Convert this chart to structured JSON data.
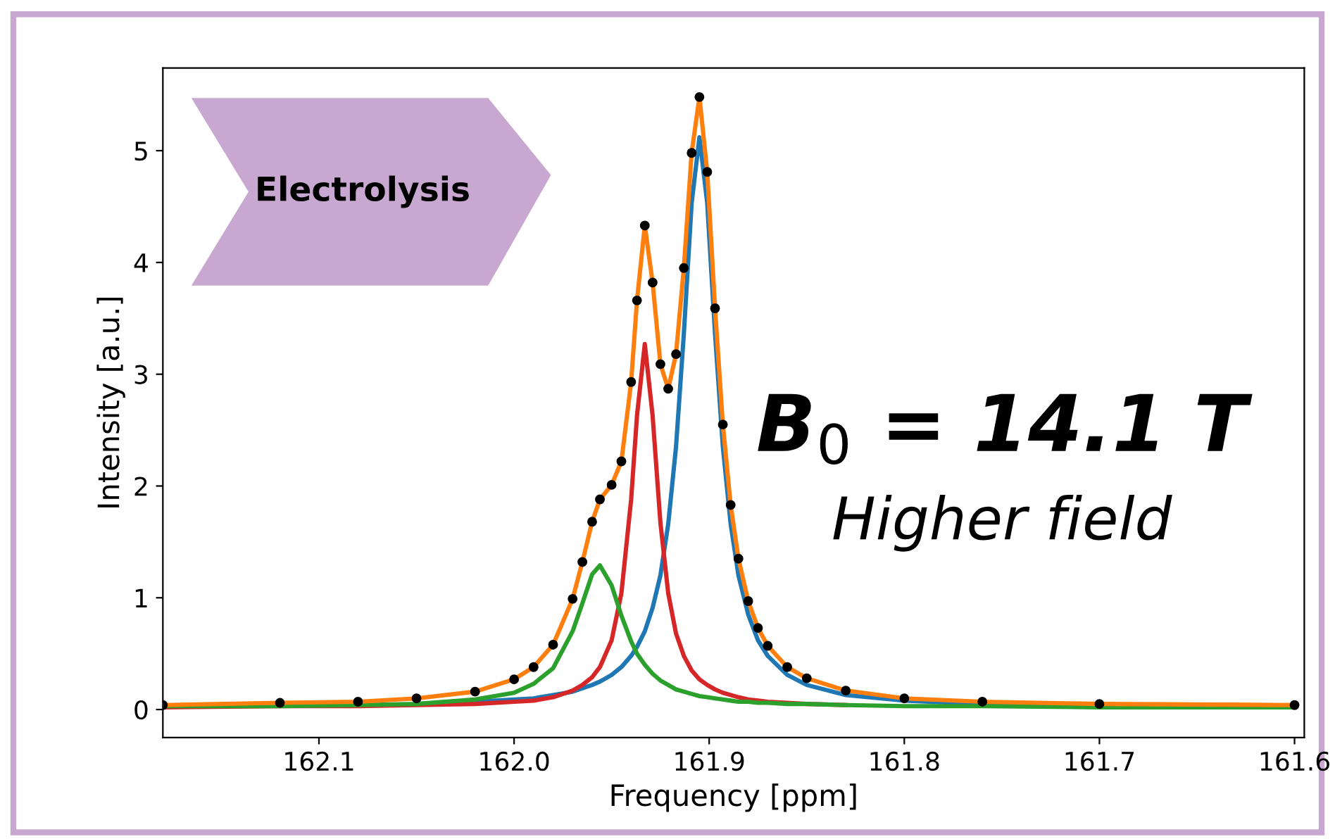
{
  "chart_data": {
    "type": "line",
    "xlabel": "Frequency [ppm]",
    "ylabel": "Intensity [a.u.]",
    "annotations": [
      "Electrolysis",
      "B$_{0}$ = 14.1 T",
      "Higher field"
    ],
    "x": [
      162.18,
      162.12,
      162.08,
      162.05,
      162.02,
      162.0,
      161.99,
      161.98,
      161.97,
      161.965,
      161.96,
      161.956,
      161.95,
      161.945,
      161.94,
      161.937,
      161.933,
      161.929,
      161.925,
      161.921,
      161.917,
      161.913,
      161.909,
      161.905,
      161.901,
      161.897,
      161.893,
      161.889,
      161.885,
      161.88,
      161.875,
      161.87,
      161.86,
      161.85,
      161.83,
      161.8,
      161.76,
      161.7,
      161.6
    ],
    "series": [
      {
        "type": "scatter",
        "color": "#000000",
        "values": [
          0.04,
          0.06,
          0.07,
          0.1,
          0.16,
          0.27,
          0.38,
          0.58,
          0.99,
          1.32,
          1.68,
          1.88,
          2.01,
          2.22,
          2.93,
          3.66,
          4.33,
          3.82,
          3.09,
          2.87,
          3.18,
          3.95,
          4.98,
          5.48,
          4.81,
          3.59,
          2.55,
          1.83,
          1.35,
          0.97,
          0.73,
          0.57,
          0.38,
          0.28,
          0.17,
          0.1,
          0.07,
          0.05,
          0.04
        ]
      },
      {
        "color": "#1f77b4",
        "values": [
          null,
          null,
          null,
          0.05,
          0.07,
          0.09,
          0.1,
          0.13,
          0.16,
          0.19,
          0.22,
          0.25,
          0.31,
          0.38,
          0.48,
          0.56,
          0.7,
          0.91,
          1.2,
          1.66,
          2.35,
          3.36,
          4.53,
          5.12,
          4.53,
          3.36,
          2.35,
          1.66,
          1.2,
          0.85,
          0.62,
          0.48,
          0.31,
          0.22,
          0.13,
          0.08,
          0.05,
          0.03,
          0.03
        ]
      },
      {
        "color": "#d62728",
        "values": [
          0.02,
          0.03,
          0.03,
          0.04,
          0.05,
          0.07,
          0.08,
          0.11,
          0.17,
          0.22,
          0.29,
          0.38,
          0.62,
          1.04,
          1.88,
          2.63,
          3.27,
          2.63,
          1.67,
          1.04,
          0.68,
          0.48,
          0.35,
          0.27,
          0.22,
          0.18,
          0.15,
          0.13,
          0.11,
          0.09,
          0.08,
          0.07,
          0.06,
          0.05,
          0.04,
          null,
          null,
          null,
          null
        ]
      },
      {
        "color": "#2ca02c",
        "values": [
          0.03,
          0.03,
          0.04,
          0.05,
          0.09,
          0.15,
          0.23,
          0.37,
          0.7,
          0.95,
          1.21,
          1.29,
          1.11,
          0.84,
          0.61,
          0.5,
          0.4,
          0.32,
          0.26,
          0.22,
          0.18,
          0.16,
          0.14,
          0.12,
          0.11,
          0.1,
          0.09,
          0.08,
          0.07,
          0.07,
          0.06,
          0.06,
          0.05,
          0.05,
          0.04,
          0.03,
          0.03,
          0.02,
          0.02
        ]
      },
      {
        "color": "#ff7f0e",
        "values": [
          0.04,
          0.06,
          0.07,
          0.1,
          0.16,
          0.27,
          0.38,
          0.58,
          0.99,
          1.32,
          1.68,
          1.88,
          2.01,
          2.22,
          2.93,
          3.66,
          4.33,
          3.82,
          3.09,
          2.87,
          3.18,
          3.95,
          4.98,
          5.48,
          4.81,
          3.59,
          2.55,
          1.83,
          1.35,
          0.97,
          0.73,
          0.57,
          0.38,
          0.28,
          0.17,
          0.1,
          0.07,
          0.05,
          0.04
        ]
      }
    ],
    "xlim": [
      162.18,
      161.595
    ],
    "xticks": [
      {
        "value": 162.1,
        "label": "162.1"
      },
      {
        "value": 162.0,
        "label": "162.0"
      },
      {
        "value": 161.9,
        "label": "161.9"
      },
      {
        "value": 161.8,
        "label": "161.8"
      },
      {
        "value": 161.7,
        "label": "161.7"
      },
      {
        "value": 161.6,
        "label": "161.6"
      }
    ],
    "ylim": [
      -0.25,
      5.74
    ],
    "yticks": [
      0,
      1,
      2,
      3,
      4,
      5
    ],
    "grid": false,
    "legend": false
  }
}
